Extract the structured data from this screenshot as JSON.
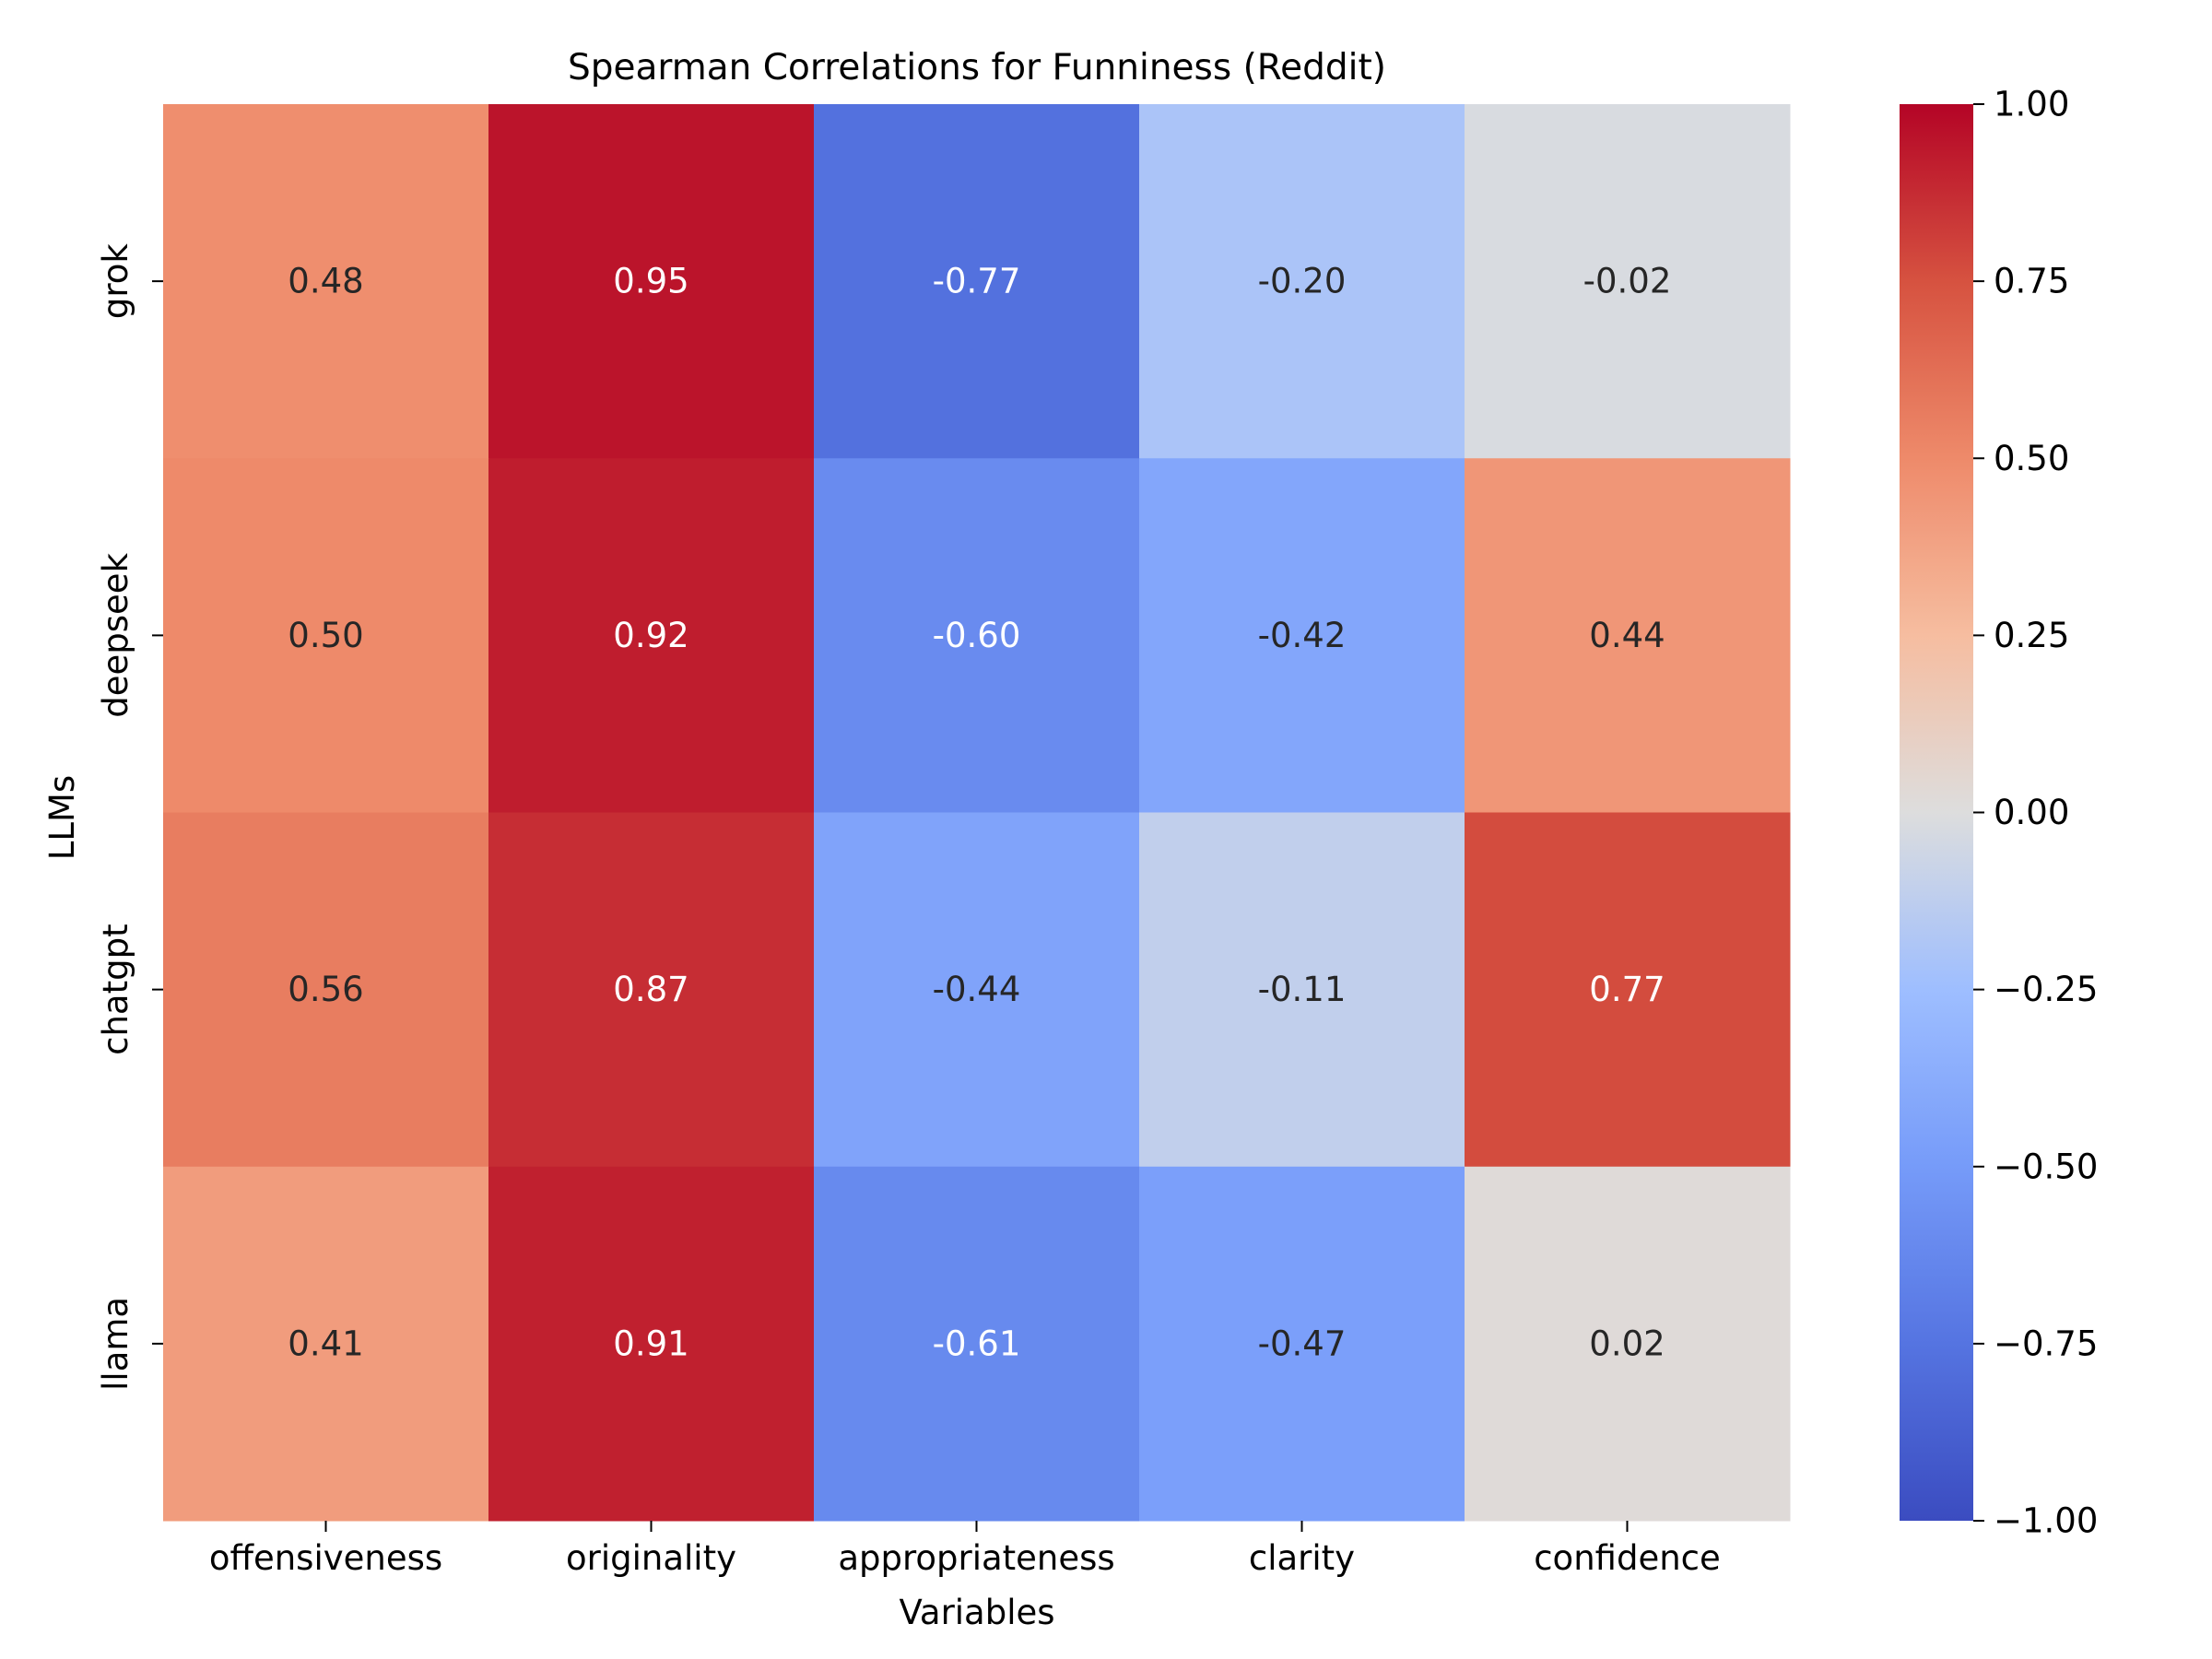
{
  "chart_data": {
    "type": "heatmap",
    "title": "Spearman Correlations for Funniness (Reddit)",
    "xlabel": "Variables",
    "ylabel": "LLMs",
    "x_categories": [
      "offensiveness",
      "originality",
      "appropriateness",
      "clarity",
      "confidence"
    ],
    "y_categories": [
      "grok",
      "deepseek",
      "chatgpt",
      "llama"
    ],
    "values": [
      [
        0.48,
        0.95,
        -0.77,
        -0.2,
        -0.02
      ],
      [
        0.5,
        0.92,
        -0.6,
        -0.42,
        0.44
      ],
      [
        0.56,
        0.87,
        -0.44,
        -0.11,
        0.77
      ],
      [
        0.41,
        0.91,
        -0.61,
        -0.47,
        0.02
      ]
    ],
    "value_labels": [
      [
        "0.48",
        "0.95",
        "-0.77",
        "-0.20",
        "-0.02"
      ],
      [
        "0.50",
        "0.92",
        "-0.60",
        "-0.42",
        "0.44"
      ],
      [
        "0.56",
        "0.87",
        "-0.44",
        "-0.11",
        "0.77"
      ],
      [
        "0.41",
        "0.91",
        "-0.61",
        "-0.47",
        "0.02"
      ]
    ],
    "colorbar": {
      "vmin": -1.0,
      "vmax": 1.0,
      "colormap": "coolwarm",
      "ticks": [
        1.0,
        0.75,
        0.5,
        0.25,
        0.0,
        -0.25,
        -0.5,
        -0.75,
        -1.0
      ],
      "tick_labels": [
        "1.00",
        "0.75",
        "0.50",
        "0.25",
        "0.00",
        "−0.25",
        "−0.50",
        "−0.75",
        "−1.00"
      ]
    }
  }
}
